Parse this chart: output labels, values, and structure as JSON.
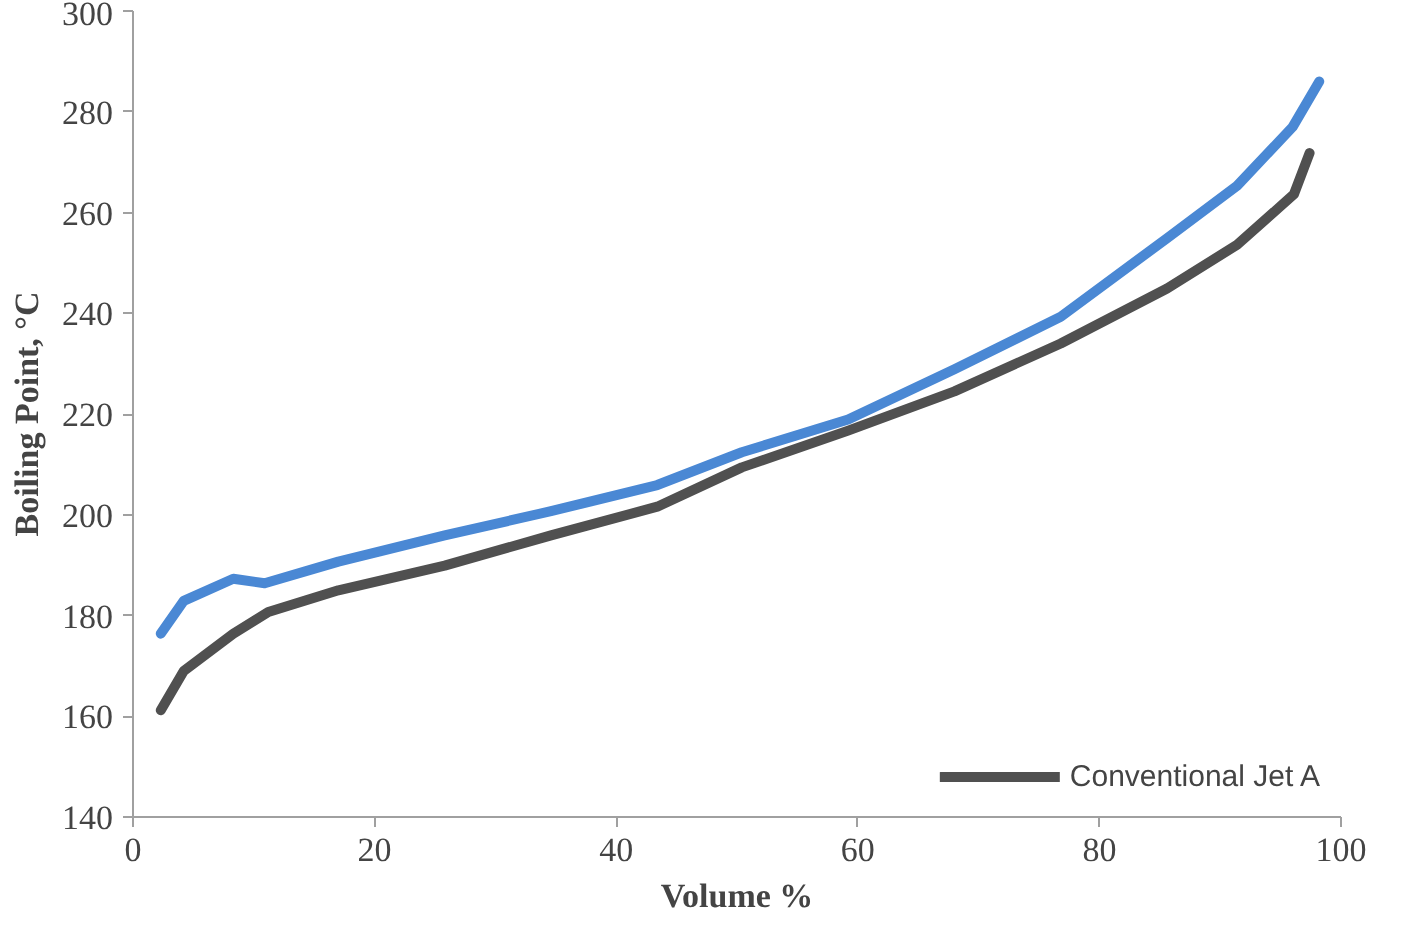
{
  "chart_data": {
    "type": "line",
    "xlabel": "Volume %",
    "ylabel": "Boiling Point, °C",
    "xlim": [
      0,
      100
    ],
    "ylim": [
      140,
      300
    ],
    "xticks": [
      0,
      20,
      40,
      60,
      80,
      100
    ],
    "yticks": [
      140,
      160,
      180,
      200,
      220,
      240,
      260,
      280,
      300
    ],
    "grid": false,
    "legend": "bottom right",
    "marker": "none",
    "line_style": "solid",
    "series": [
      {
        "color": "#4a88d4",
        "x": [
          2.3,
          4.2,
          8.3,
          10.9,
          17,
          25.8,
          34.6,
          43.4,
          50.4,
          59.2,
          68,
          76.8,
          85.6,
          91.4,
          96,
          98.2
        ],
        "values": [
          176.4,
          182.9,
          187.3,
          186.4,
          190.7,
          195.9,
          200.7,
          205.9,
          212.4,
          218.9,
          228.9,
          239.3,
          254.9,
          265.3,
          277,
          286
        ]
      },
      {
        "name": "Conventional Jet A",
        "color": "#505050",
        "x": [
          2.3,
          4.2,
          8.3,
          11.2,
          17,
          25.8,
          34.6,
          43.4,
          50.4,
          59.2,
          68,
          76.8,
          85.6,
          91.4,
          96.1,
          97.4
        ],
        "values": [
          161.2,
          169,
          176.4,
          180.7,
          185,
          189.9,
          195.9,
          201.6,
          209.4,
          216.7,
          224.5,
          234,
          244.9,
          253.6,
          263.6,
          271.8
        ]
      }
    ]
  }
}
